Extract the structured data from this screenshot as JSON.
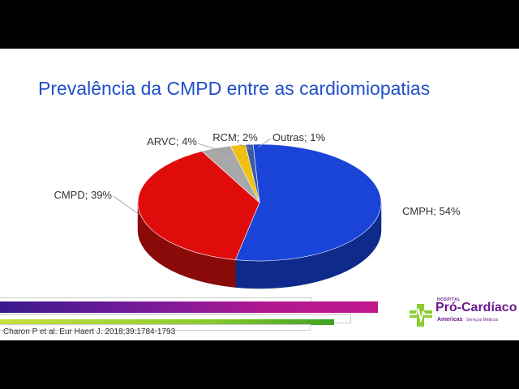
{
  "slide": {
    "title": "Prevalência da CMPD entre as cardiomiopatias",
    "citation": "Charon P et al. Eur Haert J. 2018;39:1784-1793"
  },
  "logo": {
    "hospital": "HOSPITAL",
    "name": "Pró-Cardíaco",
    "sub1": "Americas",
    "sub2": "Serviços Médicos"
  },
  "chart_data": {
    "type": "pie",
    "style": "3d",
    "title": "",
    "slices": [
      {
        "name": "CMPH",
        "value": 54,
        "label": "CMPH; 54%",
        "color": "#1a44d8",
        "side_color": "#0e2a8a"
      },
      {
        "name": "CMPD",
        "value": 39,
        "label": "CMPD; 39%",
        "color": "#e00c0c",
        "side_color": "#8a0a0a"
      },
      {
        "name": "ARVC",
        "value": 4,
        "label": "ARVC; 4%",
        "color": "#a8a8a8",
        "side_color": "#6a6a6a"
      },
      {
        "name": "RCM",
        "value": 2,
        "label": "RCM; 2%",
        "color": "#f0c010",
        "side_color": "#a08008"
      },
      {
        "name": "Outras",
        "value": 1,
        "label": "Outras; 1%",
        "color": "#3a5aa8",
        "side_color": "#23366a"
      }
    ]
  },
  "colors": {
    "title": "#2050c8",
    "logo_purple": "#6a1a8a",
    "logo_green": "#8ccc30"
  }
}
